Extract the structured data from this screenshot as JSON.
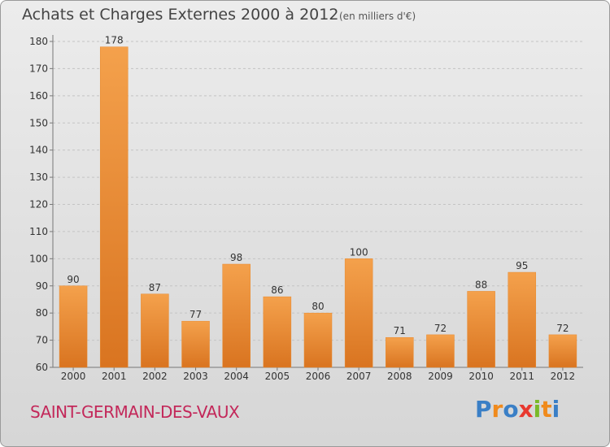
{
  "header": {
    "title": "Achats et Charges Externes 2000 à 2012",
    "subtitle": "(en milliers d'€)"
  },
  "footer": {
    "commune": "SAINT-GERMAIN-DES-VAUX",
    "logo_letters": [
      "P",
      "r",
      "o",
      "x",
      "i",
      "t",
      "i"
    ],
    "logo_colors": [
      "#3a7fc6",
      "#f08a1c",
      "#3a7fc6",
      "#e8382f",
      "#7ab929",
      "#f08a1c",
      "#3a7fc6"
    ]
  },
  "chart_data": {
    "type": "bar",
    "categories": [
      "2000",
      "2001",
      "2002",
      "2003",
      "2004",
      "2005",
      "2006",
      "2007",
      "2008",
      "2009",
      "2010",
      "2011",
      "2012"
    ],
    "values": [
      90,
      178,
      87,
      77,
      98,
      86,
      80,
      100,
      71,
      72,
      88,
      95,
      72
    ],
    "title": "Achats et Charges Externes 2000 à 2012",
    "subtitle": "(en milliers d'€)",
    "xlabel": "",
    "ylabel": "",
    "ylim": [
      60,
      180
    ],
    "yticks": [
      60,
      70,
      80,
      90,
      100,
      110,
      120,
      130,
      140,
      150,
      160,
      170,
      180
    ],
    "grid": "dashed",
    "bar_color": "#f0943a",
    "bar_color_dark": "#d9741c",
    "data_labels": true
  }
}
